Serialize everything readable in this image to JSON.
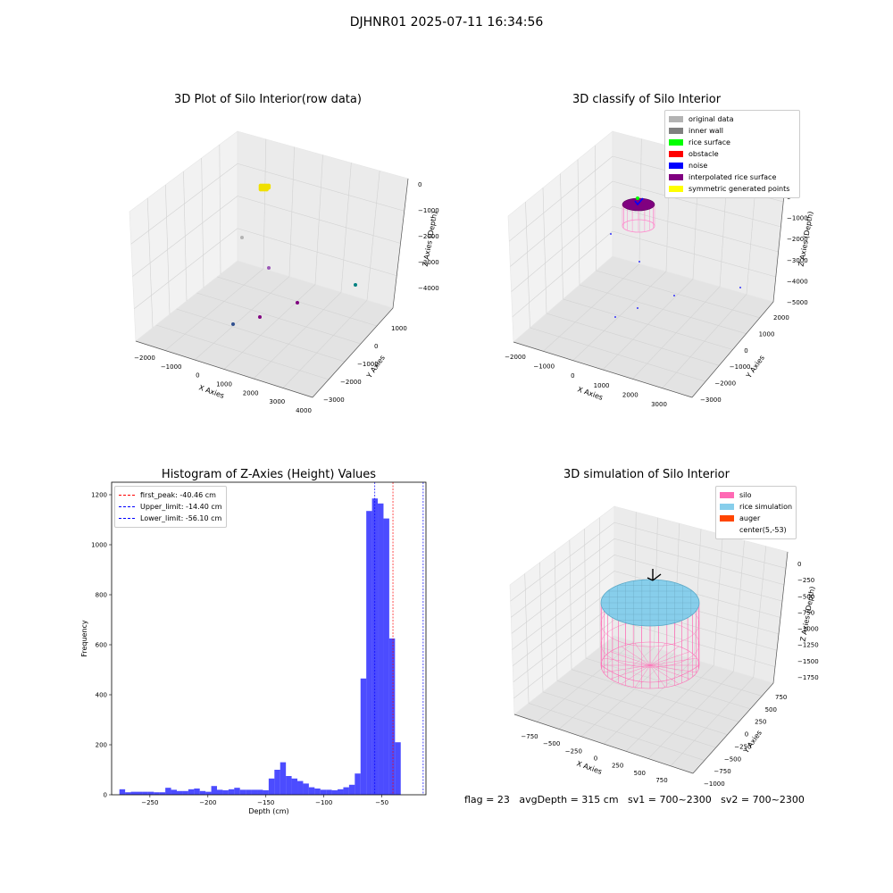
{
  "suptitle": "DJHNR01 2025-07-11 16:34:56",
  "footer": "flag = 23   avgDepth = 315 cm   sv1 = 700~2300   sv2 = 700~2300",
  "panels": {
    "raw": {
      "title": "3D Plot of Silo Interior(row data)",
      "xlabel": "X Axies",
      "ylabel": "Y Axies",
      "zlabel": "Z Axies (Depth)",
      "xticks": [
        "−2000",
        "−1000",
        "0",
        "1000",
        "2000",
        "3000",
        "4000"
      ],
      "yticks": [
        "−3000",
        "−2000",
        "−1000",
        "0",
        "1000"
      ],
      "zticks": [
        "0",
        "−1000",
        "−2000",
        "−3000",
        "−4000"
      ]
    },
    "classify": {
      "title": "3D classify of Silo Interior",
      "xlabel": "X Axies",
      "ylabel": "Y Axies",
      "zlabel": "Z Axies (Depth)",
      "xticks": [
        "−2000",
        "−1000",
        "0",
        "1000",
        "2000",
        "3000"
      ],
      "yticks": [
        "−3000",
        "−2000",
        "−1000",
        "0",
        "1000",
        "2000"
      ],
      "zticks": [
        "0",
        "−1000",
        "−2000",
        "−3000",
        "−4000",
        "−5000"
      ],
      "legend": [
        {
          "label": "original data",
          "color": "#b3b3b3"
        },
        {
          "label": "inner wall",
          "color": "#808080"
        },
        {
          "label": "rice surface",
          "color": "#00ff00"
        },
        {
          "label": "obstacle",
          "color": "#ff0000"
        },
        {
          "label": "noise",
          "color": "#0000ff"
        },
        {
          "label": "interpolated rice surface",
          "color": "#800080"
        },
        {
          "label": "symmetric generated points",
          "color": "#ffff00"
        }
      ]
    },
    "simulation": {
      "title": "3D simulation of Silo Interior",
      "xlabel": "X Axies",
      "ylabel": "Y Axies",
      "zlabel": "Z Axies (Depth)",
      "xticks": [
        "−750",
        "−500",
        "−250",
        "0",
        "250",
        "500",
        "750"
      ],
      "yticks": [
        "−1000",
        "−750",
        "−500",
        "−250",
        "0",
        "250",
        "500",
        "750"
      ],
      "zticks": [
        "0",
        "−250",
        "−500",
        "−750",
        "−1000",
        "−1250",
        "−1500",
        "−1750"
      ],
      "legend": [
        {
          "label": "silo",
          "color": "#ff69b4"
        },
        {
          "label": "rice simulation",
          "color": "#87ceeb"
        },
        {
          "label": "auger",
          "color": "#ff4500"
        },
        {
          "label": "center(5,-53)",
          "color": ""
        }
      ]
    }
  },
  "chart_data": {
    "type": "bar",
    "title": "Histogram of Z-Axies (Height) Values",
    "xlabel": "Depth (cm)",
    "ylabel": "Frequency",
    "xlim": [
      -283,
      -12
    ],
    "ylim": [
      0,
      1250
    ],
    "xticks": [
      -250,
      -200,
      -150,
      -100,
      -50
    ],
    "xtick_labels": [
      "−250",
      "−200",
      "−150",
      "−100",
      "−50"
    ],
    "yticks": [
      0,
      200,
      400,
      600,
      800,
      1000,
      1200
    ],
    "bin_width": 4.95,
    "bins_start": -276.3,
    "values": [
      22,
      10,
      12,
      12,
      12,
      12,
      10,
      10,
      28,
      20,
      15,
      15,
      22,
      25,
      15,
      12,
      35,
      20,
      18,
      22,
      28,
      20,
      20,
      20,
      20,
      18,
      65,
      100,
      130,
      75,
      65,
      55,
      45,
      30,
      25,
      20,
      20,
      18,
      22,
      30,
      40,
      85,
      465,
      1135,
      1185,
      1165,
      1105,
      625,
      210
    ],
    "bar_color": "#0000ff",
    "bar_opacity": 0.7,
    "lines": [
      {
        "label": "first_peak: -40.46 cm",
        "x": -40.46,
        "color": "#ff0000"
      },
      {
        "label": "Upper_limit: -14.40 cm",
        "x": -14.4,
        "color": "#0000ff"
      },
      {
        "label": "Lower_limit: -56.10 cm",
        "x": -56.1,
        "color": "#0000ff"
      }
    ],
    "grid": false,
    "legend_position": "top-left"
  }
}
